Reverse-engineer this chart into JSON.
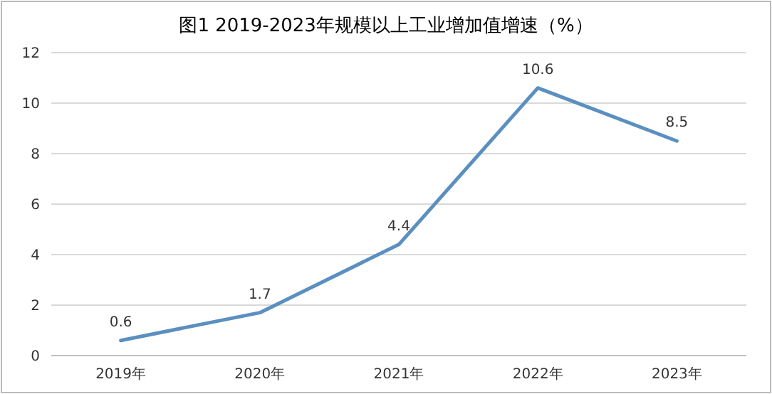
{
  "chart_data": {
    "type": "line",
    "title": "图1 2019-2023年规模以上工业增加值增速（%）",
    "categories": [
      "2019年",
      "2020年",
      "2021年",
      "2022年",
      "2023年"
    ],
    "series": [
      {
        "color": "#5b8fc0",
        "values": [
          0.6,
          1.7,
          4.4,
          10.6,
          8.5
        ]
      }
    ],
    "ylim": [
      0,
      12
    ],
    "yticks": [
      0,
      2,
      4,
      6,
      8,
      10,
      12
    ],
    "grid": "y",
    "data_labels": true,
    "marker": "none",
    "line_style": "solid"
  }
}
